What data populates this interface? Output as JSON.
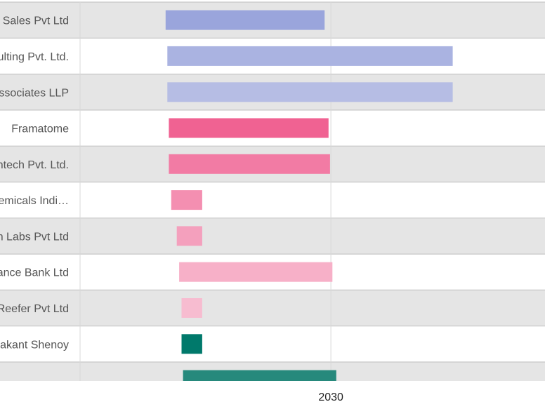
{
  "chart_data": {
    "type": "bar",
    "orientation": "horizontal",
    "bar_style": "floating-range (gantt-like)",
    "categories": [
      "Sales Pvt Ltd",
      "ulting Pvt. Ltd.",
      "ssociates LLP",
      "Framatome",
      "ntech Pvt. Ltd.",
      "emicals Indi…",
      "n Labs Pvt Ltd",
      "ance Bank Ltd",
      "Reefer Pvt Ltd",
      "akant Shenoy",
      ""
    ],
    "series": [
      {
        "ranges": [
          [
            2022.32,
            2029.71
          ],
          [
            2022.4,
            2035.66
          ],
          [
            2022.4,
            2035.66
          ],
          [
            2022.47,
            2029.89
          ],
          [
            2022.47,
            2029.96
          ],
          [
            2022.58,
            2024.02
          ],
          [
            2022.84,
            2024.02
          ],
          [
            2022.95,
            2030.07
          ],
          [
            2023.06,
            2024.02
          ],
          [
            2023.06,
            2024.02
          ],
          [
            2023.13,
            2030.25
          ]
        ],
        "colors": [
          "#9aa5dc",
          "#aab3e1",
          "#b6bde4",
          "#f06292",
          "#f27ba4",
          "#f48fb1",
          "#f4a0bd",
          "#f7b0c8",
          "#f7bcd0",
          "#00796b",
          "#26897c"
        ]
      }
    ],
    "x_ticks": [
      "2030"
    ],
    "grid": true,
    "row_banding": true,
    "legend": "none",
    "title": "",
    "xlabel": "",
    "ylabel": ""
  }
}
